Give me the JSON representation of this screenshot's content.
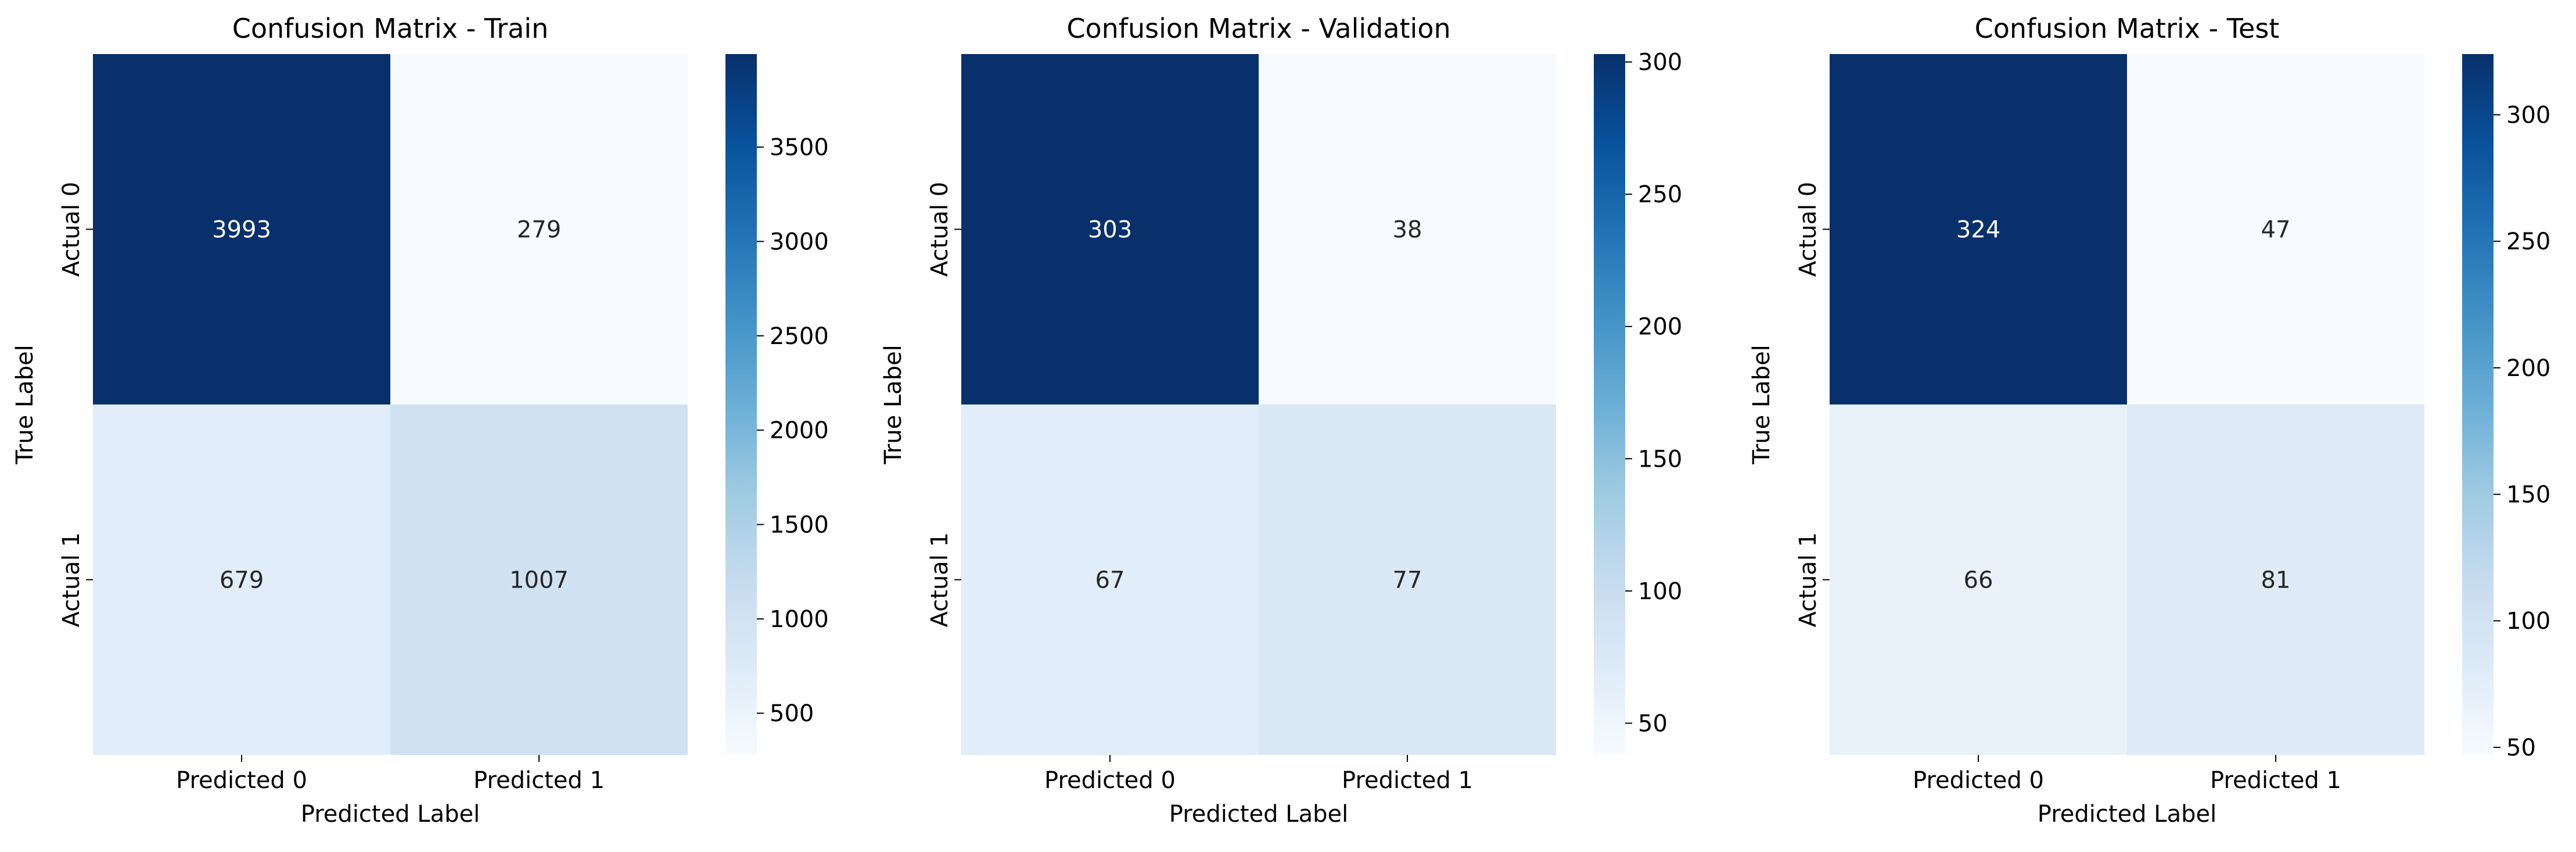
{
  "chart_data": [
    {
      "type": "heatmap",
      "title": "Confusion Matrix - Train",
      "xlabel": "Predicted Label",
      "ylabel": "True Label",
      "x_categories": [
        "Predicted 0",
        "Predicted 1"
      ],
      "y_categories": [
        "Actual 0",
        "Actual 1"
      ],
      "values": [
        [
          3993,
          279
        ],
        [
          679,
          1007
        ]
      ],
      "colormap": "Blues",
      "colorbar": {
        "range": [
          279,
          3993
        ],
        "ticks": [
          500,
          1000,
          1500,
          2000,
          2500,
          3000,
          3500
        ]
      }
    },
    {
      "type": "heatmap",
      "title": "Confusion Matrix - Validation",
      "xlabel": "Predicted Label",
      "ylabel": "True Label",
      "x_categories": [
        "Predicted 0",
        "Predicted 1"
      ],
      "y_categories": [
        "Actual 0",
        "Actual 1"
      ],
      "values": [
        [
          303,
          38
        ],
        [
          67,
          77
        ]
      ],
      "colormap": "Blues",
      "colorbar": {
        "range": [
          38,
          303
        ],
        "ticks": [
          50,
          100,
          150,
          200,
          250,
          300
        ]
      }
    },
    {
      "type": "heatmap",
      "title": "Confusion Matrix - Test",
      "xlabel": "Predicted Label",
      "ylabel": "True Label",
      "x_categories": [
        "Predicted 0",
        "Predicted 1"
      ],
      "y_categories": [
        "Actual 0",
        "Actual 1"
      ],
      "values": [
        [
          324,
          47
        ],
        [
          66,
          81
        ]
      ],
      "colormap": "Blues",
      "colorbar": {
        "range": [
          47,
          324
        ],
        "ticks": [
          50,
          100,
          150,
          200,
          250,
          300
        ]
      }
    }
  ],
  "colors": {
    "blues_low": "#f7fbff",
    "blues_high": "#08306b",
    "text_dark": "#262626",
    "text_light": "#ffffff",
    "axis": "#000000"
  }
}
